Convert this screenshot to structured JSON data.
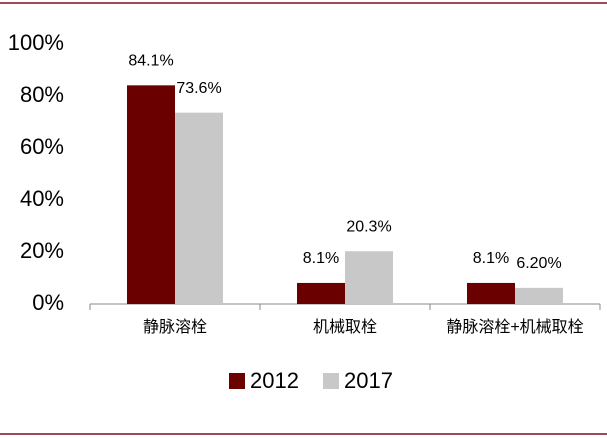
{
  "chart_data": {
    "type": "bar",
    "categories": [
      "静脉溶栓",
      "机械取栓",
      "静脉溶栓+机械取栓"
    ],
    "series": [
      {
        "name": "2012",
        "color": "#6b0000",
        "values": [
          84.1,
          8.1,
          8.1
        ],
        "value_labels": [
          "84.1%",
          "8.1%",
          "8.1%"
        ]
      },
      {
        "name": "2017",
        "color": "#c8c8c8",
        "values": [
          73.6,
          20.3,
          6.2
        ],
        "value_labels": [
          "73.6%",
          "20.3%",
          "6.20%"
        ]
      }
    ],
    "ylim": [
      0,
      100
    ],
    "yticks": [
      {
        "value": 0,
        "label": "0%"
      },
      {
        "value": 20,
        "label": "20%"
      },
      {
        "value": 40,
        "label": "40%"
      },
      {
        "value": 60,
        "label": "60%"
      },
      {
        "value": 80,
        "label": "80%"
      },
      {
        "value": 100,
        "label": "100%"
      }
    ],
    "legend": "bottom"
  }
}
